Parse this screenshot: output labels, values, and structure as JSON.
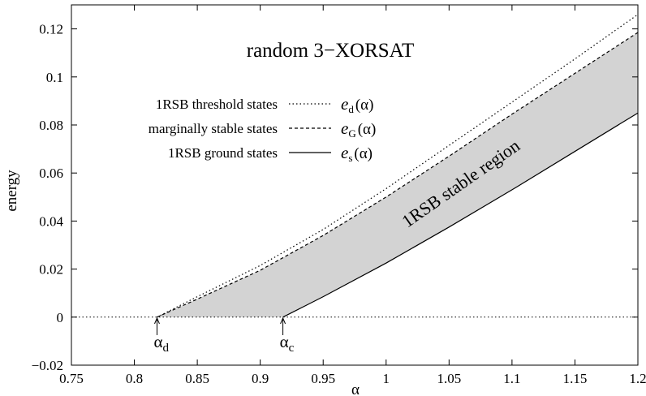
{
  "chart_data": {
    "type": "line",
    "title": "random 3−XORSAT",
    "xlabel": "α",
    "ylabel": "energy",
    "xlim": [
      0.75,
      1.2
    ],
    "ylim": [
      -0.02,
      0.13
    ],
    "xticks": [
      0.75,
      0.8,
      0.85,
      0.9,
      0.95,
      1.0,
      1.05,
      1.1,
      1.15,
      1.2
    ],
    "xtick_labels": [
      "0.75",
      "0.8",
      "0.85",
      "0.9",
      "0.95",
      "1",
      "1.05",
      "1.1",
      "1.15",
      "1.2"
    ],
    "yticks": [
      -0.02,
      0,
      0.02,
      0.04,
      0.06,
      0.08,
      0.1,
      0.12
    ],
    "ytick_labels": [
      "−0.02",
      "0",
      "0.02",
      "0.04",
      "0.06",
      "0.08",
      "0.1",
      "0.12"
    ],
    "grid": false,
    "legend_position": "top-left",
    "series": [
      {
        "name": "1RSB threshold states",
        "symbol": "d",
        "style": "dotted",
        "x": [
          0.818,
          0.85,
          0.9,
          0.95,
          1.0,
          1.05,
          1.1,
          1.15,
          1.2
        ],
        "y": [
          0.0,
          0.0085,
          0.0215,
          0.0365,
          0.0535,
          0.0715,
          0.0895,
          0.1075,
          0.126
        ]
      },
      {
        "name": "marginally stable states",
        "symbol": "G",
        "style": "dashed",
        "x": [
          0.818,
          0.85,
          0.9,
          0.95,
          1.0,
          1.05,
          1.1,
          1.15,
          1.2
        ],
        "y": [
          0.0,
          0.0075,
          0.0195,
          0.034,
          0.05,
          0.067,
          0.0845,
          0.1015,
          0.1185
        ]
      },
      {
        "name": "1RSB ground states",
        "symbol": "s",
        "style": "solid",
        "x": [
          0.918,
          0.95,
          1.0,
          1.05,
          1.1,
          1.15,
          1.2
        ],
        "y": [
          0.0,
          0.0085,
          0.0225,
          0.0375,
          0.053,
          0.069,
          0.085
        ]
      }
    ],
    "reference_line": {
      "y": 0,
      "style": "dotted"
    },
    "shaded_region": {
      "label": "1RSB stable region",
      "upper_series": "marginally stable states",
      "lower_series": "1RSB ground states",
      "color": "#d3d3d3"
    },
    "annotations": [
      {
        "text": "α",
        "subscript": "d",
        "x": 0.818
      },
      {
        "text": "α",
        "subscript": "c",
        "x": 0.918
      }
    ],
    "legend_label_text": "e",
    "legend_arg_text": "(α)"
  }
}
